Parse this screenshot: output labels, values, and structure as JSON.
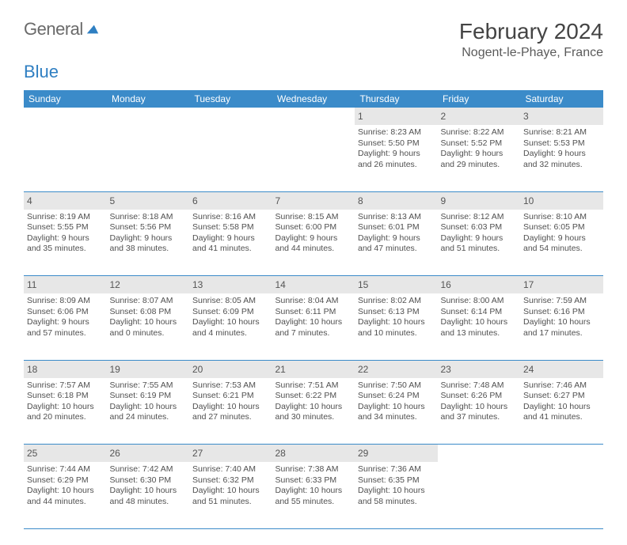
{
  "brand": {
    "part1": "General",
    "part2": "Blue"
  },
  "title": "February 2024",
  "location": "Nogent-le-Phaye, France",
  "colors": {
    "header_bg": "#3b8bc9",
    "header_text": "#ffffff",
    "daynum_bg": "#e7e7e7",
    "border": "#3b8bc9",
    "body_text": "#505050",
    "title_text": "#444444"
  },
  "weekdays": [
    "Sunday",
    "Monday",
    "Tuesday",
    "Wednesday",
    "Thursday",
    "Friday",
    "Saturday"
  ],
  "weeks": [
    [
      null,
      null,
      null,
      null,
      {
        "n": "1",
        "sunrise": "8:23 AM",
        "sunset": "5:50 PM",
        "dl1": "Daylight: 9 hours",
        "dl2": "and 26 minutes."
      },
      {
        "n": "2",
        "sunrise": "8:22 AM",
        "sunset": "5:52 PM",
        "dl1": "Daylight: 9 hours",
        "dl2": "and 29 minutes."
      },
      {
        "n": "3",
        "sunrise": "8:21 AM",
        "sunset": "5:53 PM",
        "dl1": "Daylight: 9 hours",
        "dl2": "and 32 minutes."
      }
    ],
    [
      {
        "n": "4",
        "sunrise": "8:19 AM",
        "sunset": "5:55 PM",
        "dl1": "Daylight: 9 hours",
        "dl2": "and 35 minutes."
      },
      {
        "n": "5",
        "sunrise": "8:18 AM",
        "sunset": "5:56 PM",
        "dl1": "Daylight: 9 hours",
        "dl2": "and 38 minutes."
      },
      {
        "n": "6",
        "sunrise": "8:16 AM",
        "sunset": "5:58 PM",
        "dl1": "Daylight: 9 hours",
        "dl2": "and 41 minutes."
      },
      {
        "n": "7",
        "sunrise": "8:15 AM",
        "sunset": "6:00 PM",
        "dl1": "Daylight: 9 hours",
        "dl2": "and 44 minutes."
      },
      {
        "n": "8",
        "sunrise": "8:13 AM",
        "sunset": "6:01 PM",
        "dl1": "Daylight: 9 hours",
        "dl2": "and 47 minutes."
      },
      {
        "n": "9",
        "sunrise": "8:12 AM",
        "sunset": "6:03 PM",
        "dl1": "Daylight: 9 hours",
        "dl2": "and 51 minutes."
      },
      {
        "n": "10",
        "sunrise": "8:10 AM",
        "sunset": "6:05 PM",
        "dl1": "Daylight: 9 hours",
        "dl2": "and 54 minutes."
      }
    ],
    [
      {
        "n": "11",
        "sunrise": "8:09 AM",
        "sunset": "6:06 PM",
        "dl1": "Daylight: 9 hours",
        "dl2": "and 57 minutes."
      },
      {
        "n": "12",
        "sunrise": "8:07 AM",
        "sunset": "6:08 PM",
        "dl1": "Daylight: 10 hours",
        "dl2": "and 0 minutes."
      },
      {
        "n": "13",
        "sunrise": "8:05 AM",
        "sunset": "6:09 PM",
        "dl1": "Daylight: 10 hours",
        "dl2": "and 4 minutes."
      },
      {
        "n": "14",
        "sunrise": "8:04 AM",
        "sunset": "6:11 PM",
        "dl1": "Daylight: 10 hours",
        "dl2": "and 7 minutes."
      },
      {
        "n": "15",
        "sunrise": "8:02 AM",
        "sunset": "6:13 PM",
        "dl1": "Daylight: 10 hours",
        "dl2": "and 10 minutes."
      },
      {
        "n": "16",
        "sunrise": "8:00 AM",
        "sunset": "6:14 PM",
        "dl1": "Daylight: 10 hours",
        "dl2": "and 13 minutes."
      },
      {
        "n": "17",
        "sunrise": "7:59 AM",
        "sunset": "6:16 PM",
        "dl1": "Daylight: 10 hours",
        "dl2": "and 17 minutes."
      }
    ],
    [
      {
        "n": "18",
        "sunrise": "7:57 AM",
        "sunset": "6:18 PM",
        "dl1": "Daylight: 10 hours",
        "dl2": "and 20 minutes."
      },
      {
        "n": "19",
        "sunrise": "7:55 AM",
        "sunset": "6:19 PM",
        "dl1": "Daylight: 10 hours",
        "dl2": "and 24 minutes."
      },
      {
        "n": "20",
        "sunrise": "7:53 AM",
        "sunset": "6:21 PM",
        "dl1": "Daylight: 10 hours",
        "dl2": "and 27 minutes."
      },
      {
        "n": "21",
        "sunrise": "7:51 AM",
        "sunset": "6:22 PM",
        "dl1": "Daylight: 10 hours",
        "dl2": "and 30 minutes."
      },
      {
        "n": "22",
        "sunrise": "7:50 AM",
        "sunset": "6:24 PM",
        "dl1": "Daylight: 10 hours",
        "dl2": "and 34 minutes."
      },
      {
        "n": "23",
        "sunrise": "7:48 AM",
        "sunset": "6:26 PM",
        "dl1": "Daylight: 10 hours",
        "dl2": "and 37 minutes."
      },
      {
        "n": "24",
        "sunrise": "7:46 AM",
        "sunset": "6:27 PM",
        "dl1": "Daylight: 10 hours",
        "dl2": "and 41 minutes."
      }
    ],
    [
      {
        "n": "25",
        "sunrise": "7:44 AM",
        "sunset": "6:29 PM",
        "dl1": "Daylight: 10 hours",
        "dl2": "and 44 minutes."
      },
      {
        "n": "26",
        "sunrise": "7:42 AM",
        "sunset": "6:30 PM",
        "dl1": "Daylight: 10 hours",
        "dl2": "and 48 minutes."
      },
      {
        "n": "27",
        "sunrise": "7:40 AM",
        "sunset": "6:32 PM",
        "dl1": "Daylight: 10 hours",
        "dl2": "and 51 minutes."
      },
      {
        "n": "28",
        "sunrise": "7:38 AM",
        "sunset": "6:33 PM",
        "dl1": "Daylight: 10 hours",
        "dl2": "and 55 minutes."
      },
      {
        "n": "29",
        "sunrise": "7:36 AM",
        "sunset": "6:35 PM",
        "dl1": "Daylight: 10 hours",
        "dl2": "and 58 minutes."
      },
      null,
      null
    ]
  ],
  "labels": {
    "sunrise": "Sunrise:",
    "sunset": "Sunset:"
  }
}
